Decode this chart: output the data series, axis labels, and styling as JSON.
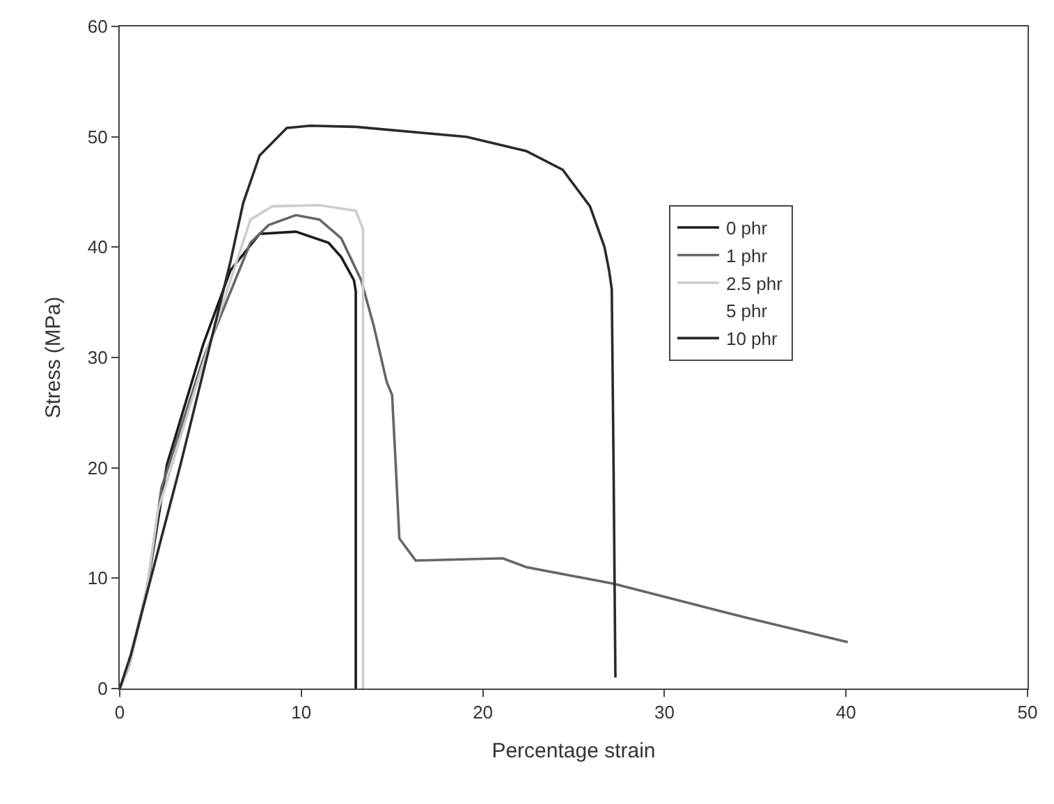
{
  "chart_data": {
    "type": "line",
    "xlabel": "Percentage strain",
    "ylabel": "Stress (MPa)",
    "xlim": [
      0,
      50
    ],
    "xticks": [
      0,
      10,
      20,
      30,
      40,
      50
    ],
    "ylim": [
      0,
      60
    ],
    "yticks": [
      0,
      10,
      20,
      30,
      40,
      50,
      60
    ],
    "grid": false,
    "legend": "right",
    "marker": "none",
    "line_style": "solid",
    "series": [
      {
        "name": "0 phr",
        "color": "#1a1a1a",
        "x": [
          0,
          0.5,
          1.5,
          2.6,
          4.6,
          6.1,
          7.7,
          9.7,
          11.5,
          12.2,
          12.9,
          13.0,
          13.0
        ],
        "values": [
          0,
          2,
          9,
          20.3,
          31.2,
          37.9,
          41.2,
          41.4,
          40.4,
          39.1,
          37,
          36,
          0
        ]
      },
      {
        "name": "1 phr",
        "color": "#666666",
        "x": [
          0,
          0.5,
          1.5,
          2.3,
          4.6,
          7.2,
          8.2,
          9.7,
          11,
          12.2,
          13.3,
          14.0,
          14.7,
          15.0,
          15.2,
          15.4,
          16.3,
          21.1,
          22.4,
          27.2,
          34.3,
          40.1
        ],
        "values": [
          0,
          2,
          9,
          18.2,
          29.9,
          40.4,
          42,
          42.9,
          42.5,
          40.8,
          37,
          32.8,
          27.8,
          26.6,
          20.3,
          13.6,
          11.6,
          11.8,
          11.0,
          9.5,
          6.5,
          4.2
        ]
      },
      {
        "name": "2.5 phr",
        "color": "#cccccc",
        "x": [
          0,
          0.5,
          1.5,
          2.1,
          4.6,
          7.2,
          8.4,
          11,
          13,
          13.4,
          13.4
        ],
        "values": [
          0,
          2,
          9,
          16.1,
          29.5,
          42.5,
          43.7,
          43.8,
          43.3,
          41.6,
          0
        ]
      },
      {
        "name": "5 phr"
      },
      {
        "name": "10 phr",
        "color": "#2a2a2a",
        "x": [
          0,
          0.6,
          3.35,
          6.1,
          6.8,
          7.7,
          9.2,
          10.5,
          13,
          19.1,
          22.4,
          24.4,
          25.9,
          26.7,
          26.95,
          27.1,
          27.2,
          27.3
        ],
        "values": [
          0,
          3,
          20.3,
          38.7,
          44,
          48.3,
          50.8,
          51,
          50.9,
          50,
          48.7,
          47,
          43.7,
          40,
          37.9,
          36.2,
          20,
          1
        ]
      }
    ]
  }
}
